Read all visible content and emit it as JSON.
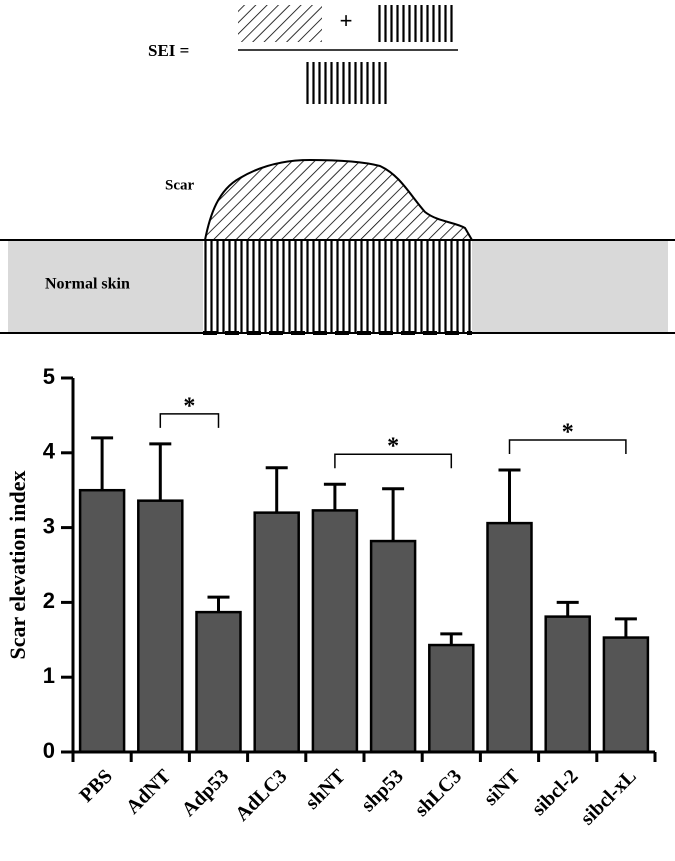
{
  "diagram": {
    "formula_label": "SEI =",
    "plus": "+",
    "scar_label": "Scar",
    "skin_label": "Normal skin"
  },
  "chart_data": {
    "type": "bar",
    "ylabel": "Scar elevation index",
    "categories": [
      "PBS",
      "AdNT",
      "Adp53",
      "AdLC3",
      "shNT",
      "shp53",
      "shLC3",
      "siNT",
      "sibcl-2",
      "sibcl-xL"
    ],
    "values": [
      3.5,
      3.36,
      1.87,
      3.2,
      3.23,
      2.82,
      1.43,
      3.06,
      1.81,
      1.53
    ],
    "errors": [
      0.7,
      0.76,
      0.2,
      0.6,
      0.35,
      0.7,
      0.15,
      0.71,
      0.19,
      0.25
    ],
    "color": "#555555",
    "ylim": [
      0,
      5
    ],
    "yticks": [
      0,
      1,
      2,
      3,
      4,
      5
    ],
    "annotations": [
      {
        "from": "AdNT",
        "to": "Adp53",
        "label": "*"
      },
      {
        "from": "shNT",
        "to": "shLC3",
        "label": "*"
      },
      {
        "from": "siNT",
        "to": "sibcl-xL",
        "label": "*"
      }
    ]
  }
}
